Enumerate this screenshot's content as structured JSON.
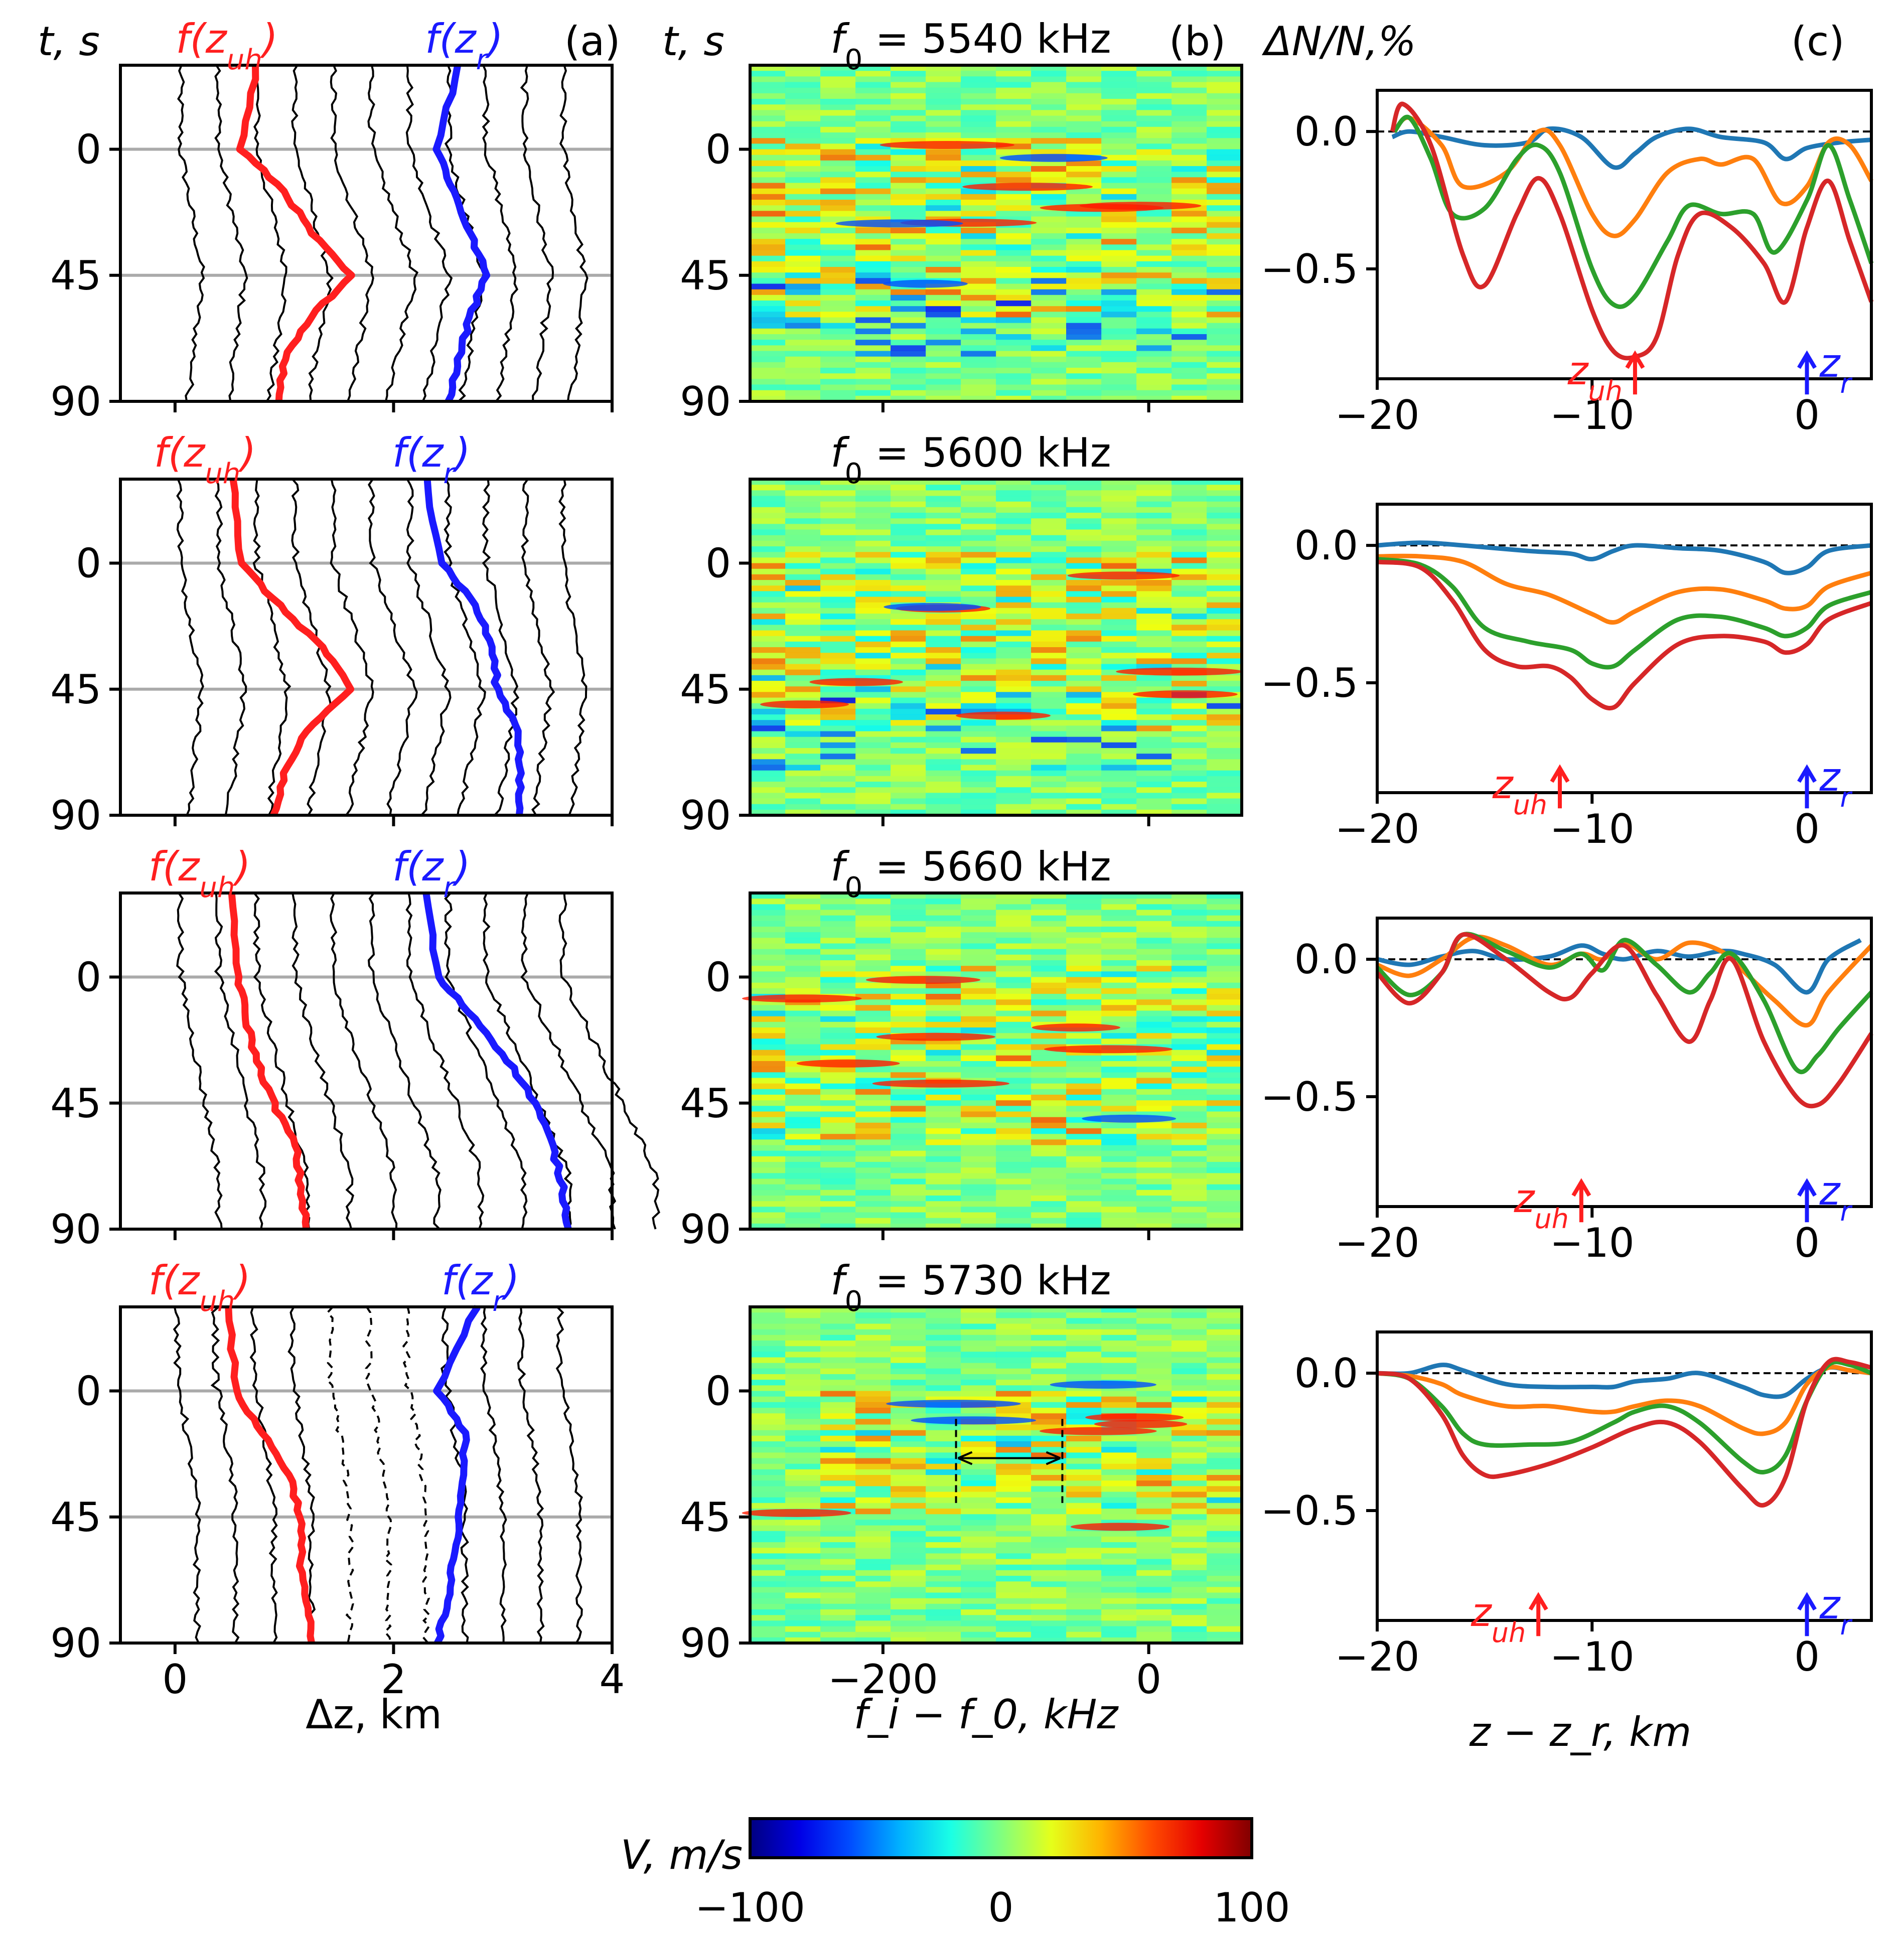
{
  "figure": {
    "panel_a_tag": "(a)",
    "panel_b_tag": "(b)",
    "panel_c_tag": "(c)",
    "col_a_ylabel": "t, s",
    "col_b_ylabel": "t, s",
    "col_c_ylabel": "ΔN/N,%",
    "col_a_xlabel": "Δz, km",
    "col_b_xlabel": "f_i − f_0, kHz",
    "col_c_xlabel": "z − z_r, km",
    "label_uh": "f(z_uh)",
    "label_r": "f(z_r)",
    "marker_uh": "z_uh",
    "marker_r": "z_r"
  },
  "colors": {
    "uh": "#ff1f1f",
    "r": "#1a1aff",
    "blue_curve": "#1f77b4",
    "orange_curve": "#ff7f0e",
    "green_curve": "#2ca02c",
    "red_curve": "#d62728",
    "grid": "#aaaaaa"
  },
  "colorbar": {
    "label": "V, m/s",
    "min": -100,
    "max": 100,
    "ticks": [
      "−100",
      "0",
      "100"
    ]
  },
  "chart_data": [
    {
      "type": "line",
      "panel": "a",
      "title": "",
      "xlabel": "Δz, km",
      "ylabel": "t, s",
      "xlim": [
        -0.5,
        4
      ],
      "ylim": [
        90,
        -30
      ],
      "xticks": [
        "0",
        "2",
        "4"
      ],
      "yticks": [
        "0",
        "45",
        "90"
      ],
      "gridlines_y": [
        0,
        45
      ],
      "rows": [
        {
          "row": 1,
          "uh_t": [
            -30,
            0,
            15,
            30,
            45,
            60,
            75,
            90
          ],
          "uh_x": [
            0.75,
            0.6,
            1.0,
            1.25,
            1.6,
            1.25,
            1.0,
            0.95
          ],
          "r_t": [
            -30,
            0,
            15,
            30,
            45,
            60,
            75,
            90
          ],
          "r_x": [
            2.6,
            2.4,
            2.55,
            2.7,
            2.85,
            2.7,
            2.6,
            2.5
          ]
        },
        {
          "row": 2,
          "uh_t": [
            -30,
            0,
            15,
            30,
            45,
            60,
            75,
            90
          ],
          "uh_x": [
            0.55,
            0.6,
            0.95,
            1.35,
            1.6,
            1.2,
            1.0,
            0.9
          ],
          "r_t": [
            -30,
            0,
            15,
            30,
            45,
            60,
            75,
            90
          ],
          "r_x": [
            2.3,
            2.45,
            2.75,
            2.9,
            2.95,
            3.15,
            3.15,
            3.15
          ]
        },
        {
          "row": 3,
          "uh_t": [
            -30,
            0,
            15,
            30,
            45,
            60,
            75,
            90
          ],
          "uh_x": [
            0.5,
            0.58,
            0.65,
            0.75,
            0.9,
            1.1,
            1.15,
            1.2
          ],
          "r_t": [
            -30,
            0,
            15,
            30,
            45,
            60,
            75,
            90
          ],
          "r_x": [
            2.3,
            2.4,
            2.75,
            3.05,
            3.3,
            3.45,
            3.55,
            3.6
          ]
        },
        {
          "row": 4,
          "uh_t": [
            -30,
            0,
            15,
            30,
            45,
            60,
            75,
            90
          ],
          "uh_x": [
            0.5,
            0.55,
            0.8,
            1.05,
            1.15,
            1.15,
            1.2,
            1.25
          ],
          "r_t": [
            -30,
            0,
            15,
            30,
            45,
            60,
            75,
            90
          ],
          "r_x": [
            2.75,
            2.4,
            2.65,
            2.65,
            2.6,
            2.55,
            2.5,
            2.4
          ]
        }
      ]
    },
    {
      "type": "heatmap",
      "panel": "b",
      "xlabel": "f_i − f_0, kHz",
      "ylabel": "t, s",
      "xlim": [
        -300,
        70
      ],
      "ylim": [
        90,
        -30
      ],
      "xticks": [
        "−200",
        "0"
      ],
      "yticks": [
        "0",
        "45",
        "90"
      ],
      "colorbar_range": [
        -100,
        100
      ],
      "rows": [
        {
          "row": 1,
          "title": "f_0 = 5540 kHz"
        },
        {
          "row": 2,
          "title": "f_0 = 5600 kHz"
        },
        {
          "row": 3,
          "title": "f_0 = 5660 kHz"
        },
        {
          "row": 4,
          "title": "f_0 = 5730 kHz"
        }
      ]
    },
    {
      "type": "line",
      "panel": "c",
      "xlabel": "z − z_r, km",
      "ylabel": "ΔN/N,%",
      "xlim": [
        -20,
        3
      ],
      "ylim": [
        -0.9,
        0.15
      ],
      "xticks": [
        "−20",
        "−10",
        "0"
      ],
      "yticks": [
        "0.0",
        "−0.5"
      ],
      "rows": [
        {
          "row": 1,
          "uh_marker_x": -8,
          "r_marker_x": 0,
          "series": [
            {
              "name": "blue",
              "x": [
                -19.3,
                -18.5,
                -17,
                -15,
                -13,
                -12,
                -10.5,
                -9,
                -8,
                -7,
                -5.5,
                -4,
                -2,
                -1,
                0,
                1.5,
                3
              ],
              "y": [
                -0.02,
                0.0,
                -0.02,
                -0.05,
                -0.04,
                0.01,
                -0.02,
                -0.13,
                -0.08,
                -0.02,
                0.01,
                -0.02,
                -0.04,
                -0.1,
                -0.06,
                -0.04,
                -0.03
              ]
            },
            {
              "name": "orange",
              "x": [
                -19.2,
                -18.5,
                -17,
                -16,
                -14,
                -12.5,
                -11.5,
                -10,
                -9,
                -8,
                -6.5,
                -5,
                -4,
                -2.5,
                -1.2,
                0,
                1,
                2,
                3
              ],
              "y": [
                0.0,
                0.05,
                -0.05,
                -0.2,
                -0.15,
                0.0,
                -0.05,
                -0.3,
                -0.38,
                -0.32,
                -0.15,
                -0.1,
                -0.12,
                -0.1,
                -0.26,
                -0.2,
                -0.04,
                -0.05,
                -0.18
              ]
            },
            {
              "name": "green",
              "x": [
                -19.2,
                -18.5,
                -17.5,
                -16.5,
                -15,
                -13.5,
                -12.5,
                -11.5,
                -10,
                -9,
                -8,
                -6.5,
                -5.5,
                -4,
                -2.5,
                -1.5,
                0,
                1,
                2,
                3
              ],
              "y": [
                0.0,
                0.05,
                -0.1,
                -0.3,
                -0.28,
                -0.1,
                -0.05,
                -0.15,
                -0.5,
                -0.63,
                -0.6,
                -0.4,
                -0.27,
                -0.3,
                -0.3,
                -0.44,
                -0.25,
                -0.05,
                -0.25,
                -0.48
              ]
            },
            {
              "name": "red",
              "x": [
                -19.3,
                -18.8,
                -17.5,
                -16,
                -15,
                -13.5,
                -12.5,
                -11.5,
                -10,
                -9,
                -8,
                -7,
                -6,
                -5,
                -3.5,
                -2,
                -1,
                0,
                1,
                2,
                3
              ],
              "y": [
                0.0,
                0.1,
                -0.05,
                -0.45,
                -0.56,
                -0.3,
                -0.17,
                -0.3,
                -0.65,
                -0.8,
                -0.82,
                -0.75,
                -0.45,
                -0.3,
                -0.35,
                -0.48,
                -0.62,
                -0.35,
                -0.18,
                -0.4,
                -0.62
              ]
            }
          ]
        },
        {
          "row": 2,
          "uh_marker_x": -11.5,
          "r_marker_x": 0,
          "series": [
            {
              "name": "blue",
              "x": [
                -20,
                -18,
                -16,
                -13,
                -11,
                -10,
                -9,
                -8,
                -6,
                -4,
                -2,
                -1,
                0,
                1,
                3
              ],
              "y": [
                0.0,
                0.01,
                0.0,
                -0.02,
                -0.03,
                -0.05,
                -0.02,
                0.0,
                -0.01,
                -0.02,
                -0.06,
                -0.1,
                -0.08,
                -0.02,
                0.0
              ]
            },
            {
              "name": "orange",
              "x": [
                -20,
                -18,
                -16,
                -14,
                -12,
                -10,
                -9,
                -8,
                -6,
                -4,
                -2,
                -1,
                0,
                1,
                3
              ],
              "y": [
                -0.04,
                -0.04,
                -0.06,
                -0.14,
                -0.18,
                -0.25,
                -0.28,
                -0.24,
                -0.17,
                -0.16,
                -0.2,
                -0.23,
                -0.22,
                -0.15,
                -0.1
              ]
            },
            {
              "name": "green",
              "x": [
                -20,
                -18,
                -16.5,
                -15,
                -13,
                -11,
                -10,
                -9,
                -8,
                -6,
                -4,
                -2,
                -1,
                0,
                1,
                3
              ],
              "y": [
                -0.05,
                -0.07,
                -0.15,
                -0.3,
                -0.35,
                -0.38,
                -0.43,
                -0.44,
                -0.38,
                -0.27,
                -0.26,
                -0.3,
                -0.33,
                -0.3,
                -0.22,
                -0.17
              ]
            },
            {
              "name": "red",
              "x": [
                -20,
                -18,
                -16.5,
                -15,
                -13.5,
                -12,
                -11,
                -10,
                -9,
                -8,
                -6,
                -4,
                -2,
                -1,
                0,
                1,
                3
              ],
              "y": [
                -0.06,
                -0.08,
                -0.2,
                -0.38,
                -0.44,
                -0.44,
                -0.48,
                -0.56,
                -0.59,
                -0.5,
                -0.36,
                -0.33,
                -0.35,
                -0.39,
                -0.36,
                -0.27,
                -0.21
              ]
            }
          ]
        },
        {
          "row": 3,
          "uh_marker_x": -10.5,
          "r_marker_x": 0,
          "series": [
            {
              "name": "blue",
              "x": [
                -20,
                -18.5,
                -17,
                -15.5,
                -14,
                -12,
                -10.5,
                -9.5,
                -8.5,
                -7,
                -5.5,
                -4,
                -3,
                -1.5,
                0,
                1,
                2.5
              ],
              "y": [
                0.0,
                -0.02,
                0.01,
                0.03,
                0.0,
                0.01,
                0.05,
                0.02,
                0.0,
                0.03,
                0.01,
                0.03,
                0.02,
                -0.02,
                -0.12,
                0.0,
                0.07
              ]
            },
            {
              "name": "orange",
              "x": [
                -20,
                -18.5,
                -17,
                -15.5,
                -14,
                -12,
                -10.5,
                -9.5,
                -8.5,
                -7,
                -5.5,
                -4,
                -3,
                -1.5,
                0,
                1,
                3
              ],
              "y": [
                -0.02,
                -0.06,
                0.0,
                0.08,
                0.05,
                -0.02,
                0.02,
                0.0,
                0.06,
                0.0,
                0.06,
                0.03,
                -0.04,
                -0.15,
                -0.24,
                -0.12,
                0.05
              ]
            },
            {
              "name": "green",
              "x": [
                -20,
                -18.5,
                -17,
                -16,
                -14,
                -12,
                -10.5,
                -9.5,
                -8.5,
                -7,
                -5.5,
                -4.5,
                -3.5,
                -2,
                -0.5,
                0.5,
                1.5,
                3
              ],
              "y": [
                -0.03,
                -0.13,
                -0.05,
                0.09,
                0.03,
                -0.03,
                0.02,
                -0.04,
                0.07,
                -0.02,
                -0.12,
                -0.05,
                0.02,
                -0.15,
                -0.4,
                -0.35,
                -0.25,
                -0.12
              ]
            },
            {
              "name": "red",
              "x": [
                -20,
                -18.5,
                -17,
                -16,
                -14,
                -12,
                -11,
                -10,
                -8.5,
                -7,
                -5.5,
                -4.5,
                -3.5,
                -2,
                -0.5,
                0.5,
                1.5,
                3
              ],
              "y": [
                -0.05,
                -0.16,
                -0.05,
                0.09,
                0.0,
                -0.12,
                -0.14,
                -0.05,
                0.05,
                -0.13,
                -0.3,
                -0.15,
                0.0,
                -0.3,
                -0.5,
                -0.53,
                -0.45,
                -0.27
              ]
            }
          ]
        },
        {
          "row": 4,
          "uh_marker_x": -12.5,
          "r_marker_x": 0,
          "series": [
            {
              "name": "blue",
              "x": [
                -20,
                -18.5,
                -17,
                -16,
                -14,
                -12,
                -10,
                -9,
                -8,
                -6.5,
                -5,
                -3,
                -2,
                -1,
                0,
                1,
                2,
                3
              ],
              "y": [
                0.0,
                0.0,
                0.03,
                0.01,
                -0.04,
                -0.05,
                -0.05,
                -0.05,
                -0.03,
                -0.02,
                0.0,
                -0.05,
                -0.08,
                -0.08,
                -0.02,
                0.02,
                0.01,
                0.0
              ]
            },
            {
              "name": "orange",
              "x": [
                -20,
                -18.5,
                -17,
                -16,
                -14,
                -12,
                -10,
                -9,
                -8,
                -6.5,
                -5,
                -3,
                -2,
                -1,
                0,
                1,
                2,
                3
              ],
              "y": [
                0.0,
                -0.01,
                -0.04,
                -0.08,
                -0.12,
                -0.12,
                -0.14,
                -0.14,
                -0.12,
                -0.1,
                -0.12,
                -0.2,
                -0.22,
                -0.18,
                -0.04,
                0.02,
                0.01,
                0.0
              ]
            },
            {
              "name": "green",
              "x": [
                -20,
                -18.5,
                -17,
                -16,
                -15,
                -13,
                -11,
                -9,
                -8,
                -6.5,
                -5,
                -3,
                -2,
                -1,
                0,
                1,
                2,
                3
              ],
              "y": [
                0.0,
                -0.02,
                -0.12,
                -0.22,
                -0.26,
                -0.26,
                -0.25,
                -0.18,
                -0.14,
                -0.12,
                -0.18,
                -0.32,
                -0.36,
                -0.3,
                -0.1,
                0.03,
                0.03,
                0.0
              ]
            },
            {
              "name": "red",
              "x": [
                -20,
                -18.5,
                -17,
                -16,
                -15,
                -14,
                -12,
                -10,
                -8,
                -6.5,
                -5,
                -3,
                -2,
                -1,
                0,
                1,
                2,
                3
              ],
              "y": [
                0.0,
                -0.02,
                -0.15,
                -0.3,
                -0.37,
                -0.37,
                -0.33,
                -0.27,
                -0.2,
                -0.18,
                -0.25,
                -0.42,
                -0.48,
                -0.38,
                -0.1,
                0.04,
                0.04,
                0.02
              ]
            }
          ]
        }
      ]
    }
  ]
}
